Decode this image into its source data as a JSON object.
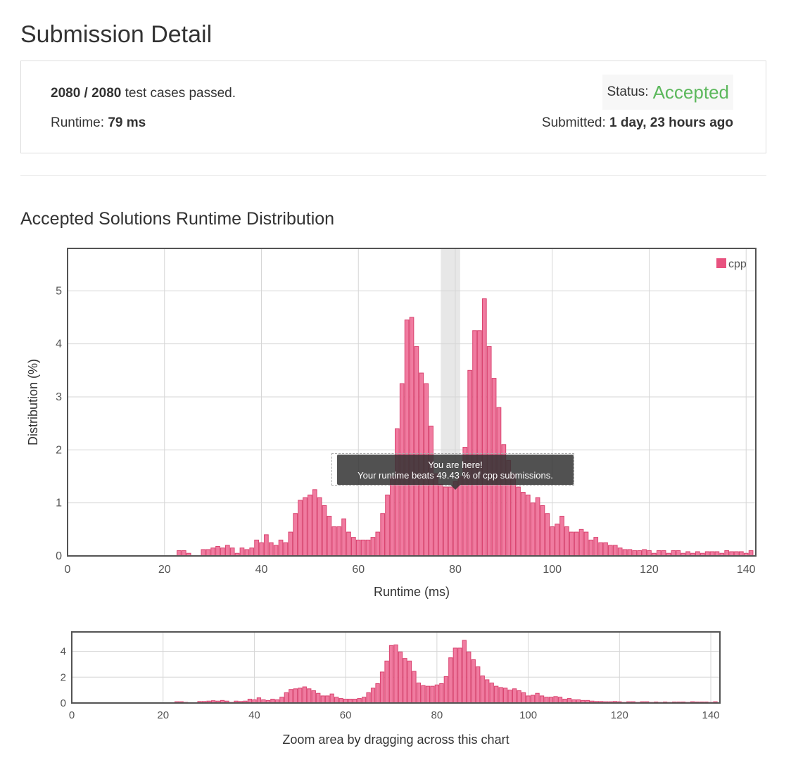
{
  "page": {
    "title": "Submission Detail"
  },
  "summary": {
    "cases_passed": "2080 / 2080",
    "cases_suffix": " test cases passed.",
    "runtime_label": "Runtime: ",
    "runtime_value": "79 ms",
    "status_label": "Status:",
    "status_value": "Accepted",
    "submitted_label": "Submitted: ",
    "submitted_value": "1 day, 23 hours ago"
  },
  "section": {
    "title": "Accepted Solutions Runtime Distribution"
  },
  "tooltip": {
    "line1": "You are here!",
    "line2": "Your runtime beats 49.43 % of cpp submissions."
  },
  "colors": {
    "bar_fill": "#f07ba0",
    "bar_stroke": "#d9436f",
    "legend_swatch": "#e8527f",
    "accepted": "#5cb85c",
    "highlight": "#dddddd"
  },
  "chart_data": [
    {
      "type": "bar",
      "title": "",
      "xlabel": "Runtime (ms)",
      "ylabel": "Distribution (%)",
      "xlim": [
        0,
        142
      ],
      "ylim": [
        0,
        5.8
      ],
      "x_ticks": [
        0,
        20,
        40,
        60,
        80,
        100,
        120,
        140
      ],
      "y_ticks": [
        0,
        1,
        2,
        3,
        4,
        5
      ],
      "grid": true,
      "legend": {
        "position": "top-right",
        "entries": [
          "cpp"
        ]
      },
      "highlight_range": [
        77,
        81
      ],
      "series": [
        {
          "name": "cpp",
          "x": [
            23,
            24,
            25,
            26,
            27,
            28,
            29,
            30,
            31,
            32,
            33,
            34,
            35,
            36,
            37,
            38,
            39,
            40,
            41,
            42,
            43,
            44,
            45,
            46,
            47,
            48,
            49,
            50,
            51,
            52,
            53,
            54,
            55,
            56,
            57,
            58,
            59,
            60,
            61,
            62,
            63,
            64,
            65,
            66,
            67,
            68,
            69,
            70,
            71,
            72,
            73,
            74,
            75,
            76,
            77,
            78,
            79,
            80,
            81,
            82,
            83,
            84,
            85,
            86,
            87,
            88,
            89,
            90,
            91,
            92,
            93,
            94,
            95,
            96,
            97,
            98,
            99,
            100,
            101,
            102,
            103,
            104,
            105,
            106,
            107,
            108,
            109,
            110,
            111,
            112,
            113,
            114,
            115,
            116,
            117,
            118,
            119,
            120,
            121,
            122,
            123,
            124,
            125,
            126,
            127,
            128,
            129,
            130,
            131,
            132,
            133,
            134,
            135,
            136,
            137,
            138,
            139,
            140,
            141
          ],
          "values": [
            0.1,
            0.1,
            0.05,
            0,
            0,
            0.12,
            0.12,
            0.15,
            0.18,
            0.15,
            0.2,
            0.15,
            0.05,
            0.15,
            0.12,
            0.15,
            0.3,
            0.25,
            0.4,
            0.25,
            0.2,
            0.3,
            0.25,
            0.45,
            0.8,
            1.05,
            1.1,
            1.15,
            1.25,
            1.1,
            0.95,
            0.75,
            0.55,
            0.55,
            0.7,
            0.45,
            0.35,
            0.3,
            0.3,
            0.3,
            0.35,
            0.45,
            0.8,
            1.15,
            1.5,
            2.4,
            3.25,
            4.45,
            4.5,
            3.95,
            3.45,
            3.25,
            2.45,
            1.55,
            1.35,
            1.3,
            1.3,
            1.4,
            1.5,
            2.05,
            3.5,
            4.25,
            4.25,
            4.85,
            3.95,
            3.35,
            2.8,
            2.1,
            1.8,
            1.55,
            1.3,
            1.2,
            1.15,
            1.0,
            1.1,
            0.95,
            0.8,
            0.55,
            0.6,
            0.75,
            0.55,
            0.45,
            0.45,
            0.5,
            0.45,
            0.3,
            0.35,
            0.25,
            0.25,
            0.2,
            0.2,
            0.15,
            0.12,
            0.12,
            0.1,
            0.1,
            0.12,
            0.1,
            0.05,
            0.1,
            0.1,
            0.05,
            0.1,
            0.1,
            0.05,
            0.08,
            0.05,
            0.08,
            0.05,
            0.08,
            0.08,
            0.08,
            0.05,
            0.1,
            0.08,
            0.08,
            0.08,
            0.05,
            0.1
          ]
        }
      ]
    },
    {
      "type": "bar",
      "title": "",
      "xlabel": "Zoom area by dragging across this chart",
      "ylabel": "",
      "xlim": [
        0,
        142
      ],
      "ylim": [
        0,
        5.5
      ],
      "x_ticks": [
        0,
        20,
        40,
        60,
        80,
        100,
        120,
        140
      ],
      "y_ticks": [
        0,
        2,
        4
      ],
      "grid": true,
      "series_ref": "cpp"
    }
  ]
}
